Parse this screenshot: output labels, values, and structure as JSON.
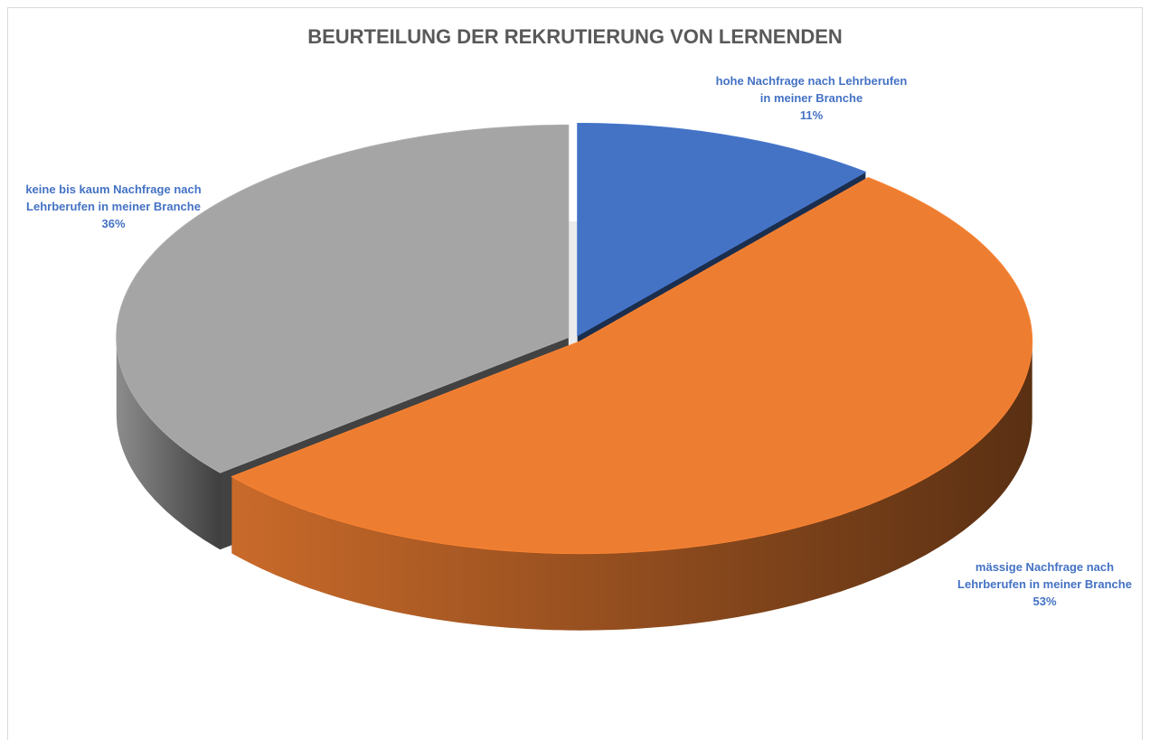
{
  "chart_data": {
    "type": "pie",
    "title": "BEURTEILUNG DER REKRUTIERUNG VON LERNENDEN",
    "categories": [
      "hohe Nachfrage nach Lehrberufen in meiner Branche",
      "mässige Nachfrage nach Lehrberufen in meiner Branche",
      "keine bis kaum Nachfrage nach Lehrberufen in meiner Branche"
    ],
    "values": [
      11,
      53,
      36
    ],
    "value_labels": [
      "11%",
      "53%",
      "36%"
    ],
    "colors": [
      "#4472c4",
      "#ed7d31",
      "#a5a5a5"
    ],
    "label_color": "#4472c4"
  }
}
